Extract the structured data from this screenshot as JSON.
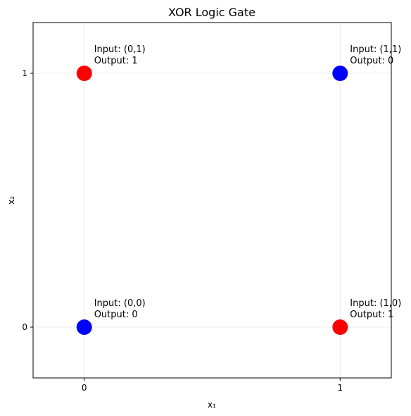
{
  "chart_data": {
    "type": "scatter",
    "title": "XOR Logic Gate",
    "xlabel": "x₁",
    "ylabel": "x₂",
    "xlim": [
      -0.2,
      1.2
    ],
    "ylim": [
      -0.2,
      1.2
    ],
    "x_ticks": [
      0,
      1
    ],
    "y_ticks": [
      0,
      1
    ],
    "grid": true,
    "points": [
      {
        "x": 0,
        "y": 0,
        "output": 0,
        "color": "#0000ff",
        "annotation": [
          "Input: (0,0)",
          "Output: 0"
        ]
      },
      {
        "x": 0,
        "y": 1,
        "output": 1,
        "color": "#ff0000",
        "annotation": [
          "Input: (0,1)",
          "Output: 1"
        ]
      },
      {
        "x": 1,
        "y": 0,
        "output": 1,
        "color": "#ff0000",
        "annotation": [
          "Input: (1,0)",
          "Output: 1"
        ]
      },
      {
        "x": 1,
        "y": 1,
        "output": 0,
        "color": "#0000ff",
        "annotation": [
          "Input: (1,1)",
          "Output: 0"
        ]
      }
    ]
  }
}
